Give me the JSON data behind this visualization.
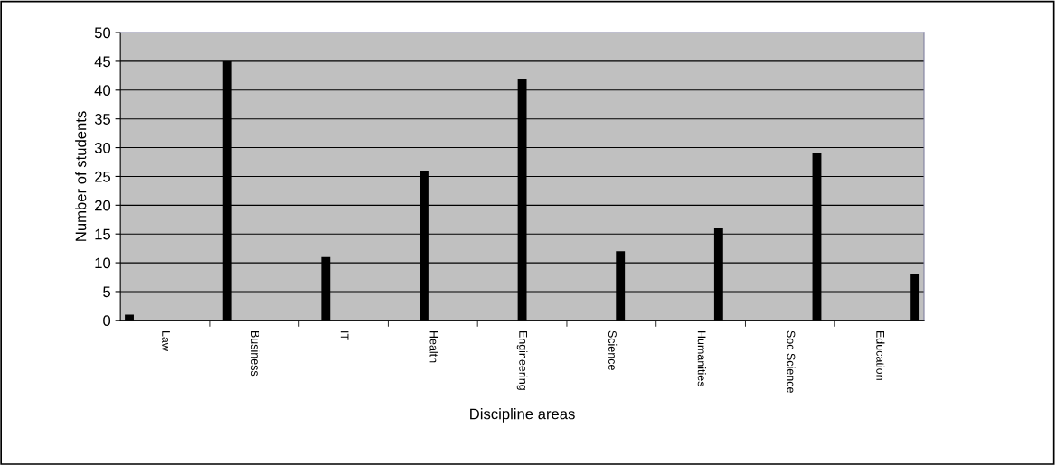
{
  "chart_data": {
    "type": "bar",
    "xlabel": "Discipline areas",
    "ylabel": "Number of students",
    "categories": [
      "Law",
      "Business",
      "IT",
      "Health",
      "Engineering",
      "Science",
      "Humanities",
      "Soc Science",
      "Education"
    ],
    "series": [
      {
        "color": "#000000",
        "values": [
          1,
          null,
          null,
          null,
          null,
          null,
          null,
          null,
          null
        ]
      },
      {
        "color": "#000000",
        "values": [
          null,
          45,
          null,
          null,
          null,
          null,
          null,
          null,
          null
        ]
      },
      {
        "color": "#000000",
        "values": [
          null,
          null,
          11,
          null,
          null,
          null,
          null,
          null,
          null
        ]
      },
      {
        "color": "#000000",
        "values": [
          null,
          null,
          null,
          26,
          null,
          null,
          null,
          null,
          null
        ]
      },
      {
        "color": "#000000",
        "values": [
          null,
          null,
          null,
          null,
          42,
          null,
          null,
          null,
          null
        ]
      },
      {
        "color": "#000000",
        "values": [
          null,
          null,
          null,
          null,
          null,
          12,
          null,
          null,
          null
        ]
      },
      {
        "color": "#000000",
        "values": [
          null,
          null,
          null,
          null,
          null,
          null,
          16,
          null,
          null
        ]
      },
      {
        "color": "#000000",
        "values": [
          null,
          null,
          null,
          null,
          null,
          null,
          null,
          29,
          null
        ]
      },
      {
        "color": "#000000",
        "values": [
          null,
          null,
          null,
          null,
          null,
          null,
          null,
          null,
          8
        ]
      }
    ],
    "ylim": [
      0,
      50
    ],
    "yticks": [
      0,
      5,
      10,
      15,
      20,
      25,
      30,
      35,
      40,
      45,
      50
    ],
    "grid": "y",
    "legend": false
  }
}
